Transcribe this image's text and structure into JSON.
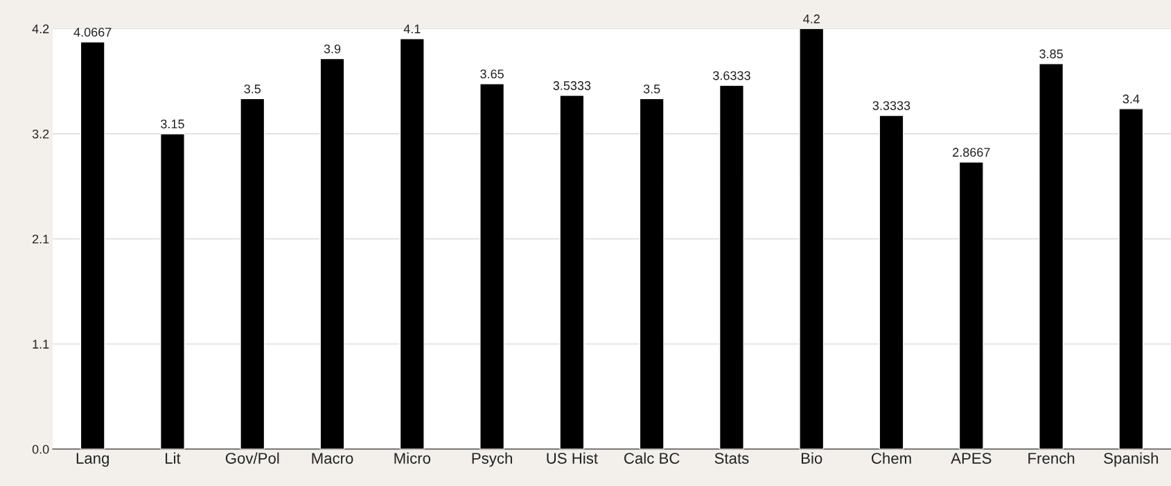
{
  "chart_data": {
    "type": "bar",
    "categories": [
      "Lang",
      "Lit",
      "Gov/Pol",
      "Macro",
      "Micro",
      "Psych",
      "US Hist",
      "Calc BC",
      "Stats",
      "Bio",
      "Chem",
      "APES",
      "French",
      "Spanish"
    ],
    "values": [
      4.0667,
      3.15,
      3.5,
      3.9,
      4.1,
      3.65,
      3.5333,
      3.5,
      3.6333,
      4.2,
      3.3333,
      2.8667,
      3.85,
      3.4
    ],
    "color": "#000000",
    "ylim": [
      0,
      4.2
    ],
    "yticks": [
      {
        "value": 0,
        "label": "0.0"
      },
      {
        "value": 1.05,
        "label": "1.1"
      },
      2.1,
      {
        "value": 3.15,
        "label": "3.2"
      },
      4.2
    ],
    "grid": "y",
    "data_labels": true,
    "legend": false
  }
}
